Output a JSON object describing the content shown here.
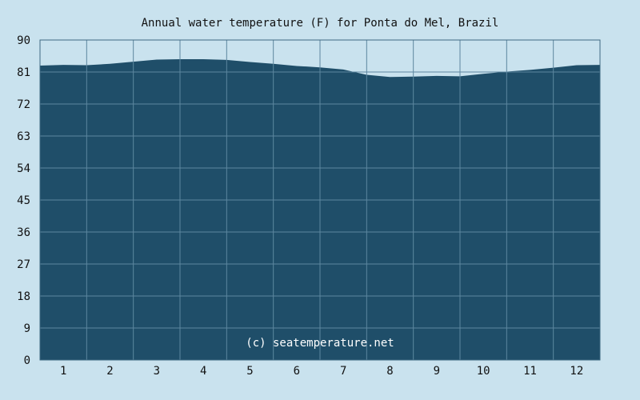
{
  "chart_data": {
    "type": "area",
    "title": "Annual water temperature (F) for Ponta do Mel, Brazil",
    "xlabel": "",
    "ylabel": "",
    "ylim": [
      0,
      90
    ],
    "xlim": [
      0.5,
      12.5
    ],
    "y_ticks": [
      "0",
      "9",
      "18",
      "27",
      "36",
      "45",
      "54",
      "63",
      "72",
      "81",
      "90"
    ],
    "x_ticks": [
      "1",
      "2",
      "3",
      "4",
      "5",
      "6",
      "7",
      "8",
      "9",
      "10",
      "11",
      "12"
    ],
    "grid": true,
    "watermark": "(c) seatemperature.net",
    "colors": {
      "background": "#c9e2ee",
      "fill": "#1f4e69",
      "grid": "#5d87a0",
      "axis": "#3f6a82"
    },
    "series": [
      {
        "x": [
          0.5,
          1.0,
          1.5,
          2.0,
          2.5,
          3.0,
          3.5,
          4.0,
          4.5,
          5.0,
          5.5,
          6.0,
          6.5,
          7.0,
          7.5,
          8.0,
          8.5,
          9.0,
          9.5,
          10.0,
          10.5,
          11.0,
          11.5,
          12.0,
          12.5
        ],
        "values": [
          82.8,
          83.0,
          82.9,
          83.3,
          83.9,
          84.5,
          84.6,
          84.6,
          84.4,
          83.8,
          83.3,
          82.7,
          82.3,
          81.7,
          80.2,
          79.6,
          79.7,
          79.9,
          79.8,
          80.5,
          81.1,
          81.6,
          82.2,
          82.9,
          83.0
        ]
      }
    ]
  }
}
